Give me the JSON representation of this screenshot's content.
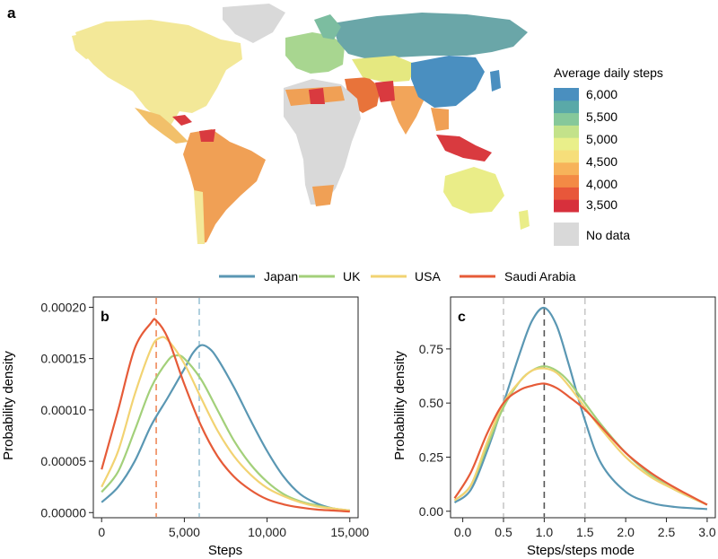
{
  "panel_a": {
    "label": "a",
    "legend_title": "Average daily steps",
    "legend_ticks": [
      "6,000",
      "5,500",
      "5,000",
      "4,500",
      "4,000",
      "3,500"
    ],
    "scale_colors": [
      "#d7303c",
      "#e8573a",
      "#f38a45",
      "#f7b35a",
      "#f6de7a",
      "#e9ef8a",
      "#c3e28a",
      "#86c89a",
      "#5aa9a8",
      "#4a8fbf"
    ],
    "no_data_label": "No data",
    "no_data_color": "#d9d9d9"
  },
  "legend": {
    "items": [
      {
        "label": "Japan",
        "color": "#5a97b3"
      },
      {
        "label": "UK",
        "color": "#a3d07a"
      },
      {
        "label": "USA",
        "color": "#f2d372"
      },
      {
        "label": "Saudi Arabia",
        "color": "#e65b38"
      }
    ]
  },
  "chart_data": [
    {
      "panel": "b",
      "type": "line",
      "xlabel": "Steps",
      "ylabel": "Probability density",
      "xlim": [
        -500,
        15500
      ],
      "ylim": [
        -5e-06,
        0.00021
      ],
      "xticks": [
        0,
        5000,
        10000,
        15000
      ],
      "xtick_labels": [
        "0",
        "5,000",
        "10,000",
        "15,000"
      ],
      "yticks": [
        0,
        5e-05,
        0.0001,
        0.00015,
        0.0002
      ],
      "ytick_labels": [
        "0.00000",
        "0.00005",
        "0.00010",
        "0.00015",
        "0.00020"
      ],
      "vlines": [
        {
          "x": 3300,
          "color": "#ef8a5a"
        },
        {
          "x": 5900,
          "color": "#9cc4d6"
        }
      ],
      "series": [
        {
          "name": "Japan",
          "color": "#5a97b3",
          "x": [
            0,
            1000,
            2000,
            3000,
            4000,
            5000,
            5500,
            6000,
            6500,
            7000,
            8000,
            9000,
            10000,
            11000,
            12000,
            13000,
            14000,
            15000
          ],
          "y": [
            1e-05,
            2.5e-05,
            5e-05,
            8.5e-05,
            0.000112,
            0.00014,
            0.000155,
            0.000163,
            0.00016,
            0.00015,
            0.000122,
            9e-05,
            6e-05,
            3.5e-05,
            1.8e-05,
            9e-06,
            4e-06,
            2e-06
          ]
        },
        {
          "name": "UK",
          "color": "#a3d07a",
          "x": [
            0,
            1000,
            2000,
            3000,
            4000,
            4500,
            5000,
            6000,
            7000,
            8000,
            9000,
            10000,
            11000,
            12000,
            13000,
            14000,
            15000
          ],
          "y": [
            2e-05,
            4e-05,
            8e-05,
            0.000122,
            0.000148,
            0.000153,
            0.00015,
            0.00013,
            0.0001,
            7e-05,
            4.7e-05,
            3e-05,
            1.8e-05,
            1.1e-05,
            7e-06,
            4e-06,
            2e-06
          ]
        },
        {
          "name": "USA",
          "color": "#f2d372",
          "x": [
            0,
            1000,
            2000,
            3000,
            3500,
            4000,
            5000,
            6000,
            7000,
            8000,
            9000,
            10000,
            11000,
            12000,
            13000,
            14000,
            15000
          ],
          "y": [
            2.5e-05,
            6e-05,
            0.000115,
            0.00016,
            0.00017,
            0.000168,
            0.000145,
            0.000112,
            8e-05,
            5.5e-05,
            3.7e-05,
            2.4e-05,
            1.6e-05,
            1e-05,
            6e-06,
            4e-06,
            2e-06
          ]
        },
        {
          "name": "Saudi Arabia",
          "color": "#e65b38",
          "x": [
            0,
            1000,
            2000,
            3000,
            3300,
            4000,
            5000,
            6000,
            7000,
            8000,
            9000,
            10000,
            11000,
            12000,
            13000,
            14000,
            15000
          ],
          "y": [
            4.2e-05,
            0.0001,
            0.00016,
            0.000185,
            0.000187,
            0.00017,
            0.000125,
            8.5e-05,
            5.5e-05,
            3.5e-05,
            2.2e-05,
            1.3e-05,
            8e-06,
            5e-06,
            3e-06,
            2e-06,
            1e-06
          ]
        }
      ]
    },
    {
      "panel": "c",
      "type": "line",
      "xlabel": "Steps/steps mode",
      "ylabel": "Probability density",
      "xlim": [
        -0.15,
        3.1
      ],
      "ylim": [
        -0.03,
        0.99
      ],
      "xticks": [
        0,
        0.5,
        1,
        1.5,
        2,
        2.5,
        3
      ],
      "xtick_labels": [
        "0.0",
        "0.5",
        "1.0",
        "1.5",
        "2.0",
        "2.5",
        "3.0"
      ],
      "yticks": [
        0,
        0.25,
        0.5,
        0.75
      ],
      "ytick_labels": [
        "0.00",
        "0.25",
        "0.50",
        "0.75"
      ],
      "vlines": [
        {
          "x": 0.5,
          "color": "#c8c8c8"
        },
        {
          "x": 1.0,
          "color": "#555555"
        },
        {
          "x": 1.5,
          "color": "#c8c8c8"
        }
      ],
      "series": [
        {
          "name": "Japan",
          "color": "#5a97b3",
          "x": [
            -0.1,
            0.1,
            0.3,
            0.5,
            0.7,
            0.85,
            1.0,
            1.15,
            1.3,
            1.5,
            1.7,
            2.0,
            2.3,
            2.6,
            3.0
          ],
          "y": [
            0.04,
            0.1,
            0.28,
            0.5,
            0.73,
            0.88,
            0.94,
            0.86,
            0.68,
            0.42,
            0.22,
            0.09,
            0.04,
            0.02,
            0.01
          ]
        },
        {
          "name": "UK",
          "color": "#a3d07a",
          "x": [
            -0.1,
            0.1,
            0.3,
            0.5,
            0.7,
            0.85,
            1.0,
            1.15,
            1.3,
            1.5,
            1.7,
            2.0,
            2.3,
            2.6,
            3.0
          ],
          "y": [
            0.05,
            0.12,
            0.3,
            0.48,
            0.6,
            0.65,
            0.67,
            0.65,
            0.6,
            0.5,
            0.4,
            0.27,
            0.17,
            0.1,
            0.03
          ]
        },
        {
          "name": "USA",
          "color": "#f2d372",
          "x": [
            -0.1,
            0.1,
            0.3,
            0.5,
            0.7,
            0.85,
            1.0,
            1.15,
            1.3,
            1.5,
            1.7,
            2.0,
            2.3,
            2.6,
            3.0
          ],
          "y": [
            0.05,
            0.12,
            0.32,
            0.5,
            0.6,
            0.65,
            0.66,
            0.64,
            0.58,
            0.48,
            0.38,
            0.25,
            0.16,
            0.1,
            0.03
          ]
        },
        {
          "name": "Saudi Arabia",
          "color": "#e65b38",
          "x": [
            -0.1,
            0.1,
            0.3,
            0.5,
            0.7,
            0.85,
            1.0,
            1.15,
            1.3,
            1.5,
            1.7,
            2.0,
            2.3,
            2.6,
            3.0
          ],
          "y": [
            0.06,
            0.18,
            0.36,
            0.5,
            0.56,
            0.58,
            0.59,
            0.57,
            0.53,
            0.47,
            0.39,
            0.27,
            0.18,
            0.11,
            0.03
          ]
        }
      ]
    }
  ]
}
